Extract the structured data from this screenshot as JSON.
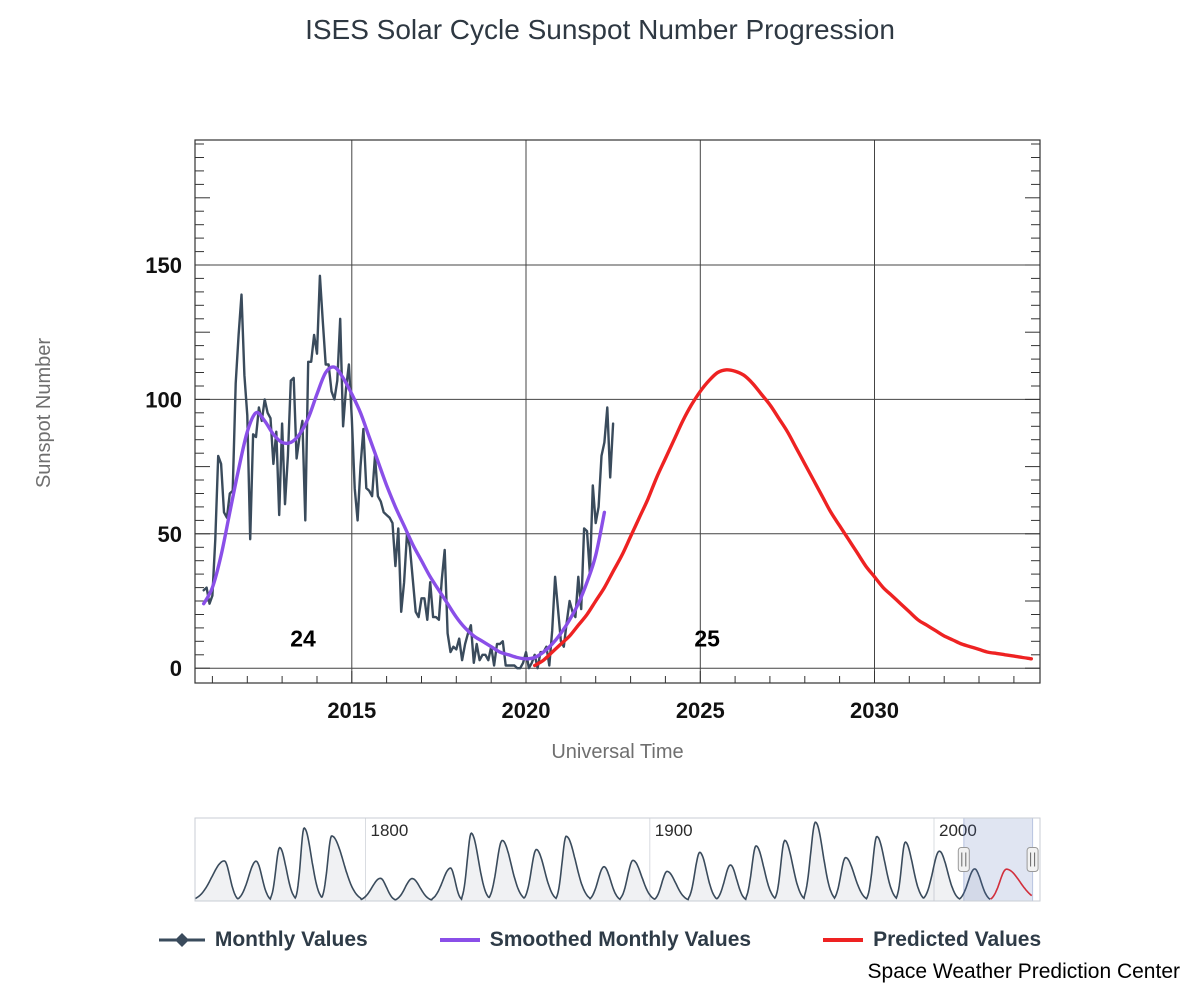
{
  "title": "ISES Solar Cycle Sunspot Number Progression",
  "credit": "Space Weather Prediction Center",
  "chart_data": {
    "type": "line",
    "title": "ISES Solar Cycle Sunspot Number Progression",
    "xlabel": "Universal Time",
    "ylabel": "Sunspot Number",
    "xlim": [
      2010.5,
      2034.75
    ],
    "ylim": [
      -5.5,
      196.5
    ],
    "x_ticks": [
      2015,
      2020,
      2025,
      2030
    ],
    "y_ticks": [
      0,
      50,
      100,
      150
    ],
    "grid": true,
    "legend_position": "bottom",
    "annotations": [
      {
        "text": "24",
        "x": 2013.6,
        "y": 8
      },
      {
        "text": "25",
        "x": 2025.2,
        "y": 8
      }
    ],
    "series": [
      {
        "id": "monthly-values",
        "name": "Monthly Values",
        "color": "#3a4b5c",
        "width": 2.4,
        "smooth": false,
        "marker": "diamond",
        "start": 2010.75,
        "step": 0.083333,
        "values": [
          29,
          30,
          24,
          27,
          48,
          79,
          76,
          58,
          56,
          65,
          66,
          106,
          124,
          139,
          109,
          94,
          48,
          87,
          86,
          97,
          92,
          100,
          95,
          93,
          76,
          88,
          57,
          91,
          61,
          79,
          107,
          108,
          78,
          86,
          92,
          55,
          114,
          114,
          124,
          117,
          146,
          129,
          113,
          113,
          103,
          100,
          107,
          130,
          90,
          104,
          113,
          93,
          67,
          55,
          75,
          89,
          67,
          66,
          64,
          79,
          64,
          62,
          58,
          57,
          56,
          54,
          38,
          52,
          21,
          32,
          50,
          45,
          33,
          21,
          19,
          26,
          26,
          18,
          32,
          19,
          19,
          18,
          33,
          44,
          13,
          6,
          8,
          7,
          11,
          3,
          9,
          13,
          16,
          2,
          9,
          3,
          5,
          5,
          3,
          8,
          1,
          9,
          9,
          10,
          1,
          1,
          1,
          1,
          0,
          0,
          2,
          6,
          0,
          2,
          5,
          0,
          6,
          6,
          8,
          1,
          14,
          34,
          22,
          10,
          8,
          17,
          25,
          21,
          19,
          34,
          22,
          52,
          51,
          35,
          68,
          54,
          60,
          79,
          84,
          97,
          71,
          91
        ]
      },
      {
        "id": "smoothed-monthly-values",
        "name": "Smoothed Monthly Values",
        "color": "#8a4fe8",
        "width": 3.4,
        "smooth": true,
        "start": 2010.75,
        "step": 0.25,
        "values": [
          24,
          30,
          42,
          58,
          74,
          88,
          95,
          92,
          87,
          84,
          84,
          87,
          93,
          102,
          110,
          112,
          108,
          102,
          95,
          86,
          77,
          68,
          60,
          53,
          46,
          40,
          34,
          29,
          24,
          19,
          15,
          12,
          10,
          8,
          6,
          5,
          4,
          3.5,
          4,
          6,
          9,
          13,
          18,
          24,
          32,
          42,
          58
        ]
      },
      {
        "id": "predicted-values",
        "name": "Predicted Values",
        "color": "#ee2222",
        "width": 3.4,
        "smooth": true,
        "start": 2020.25,
        "step": 0.25,
        "values": [
          1,
          3,
          6,
          9,
          12,
          16,
          20,
          25,
          30,
          36,
          42,
          49,
          56,
          63,
          71,
          78,
          85,
          92,
          98,
          103,
          107,
          110,
          111,
          110.5,
          109,
          106,
          102,
          98,
          93,
          88,
          82,
          76,
          70,
          64,
          58,
          53,
          48,
          43,
          38,
          34,
          30,
          27,
          24,
          21,
          18,
          16,
          14,
          12,
          10.5,
          9,
          8,
          7,
          6,
          5.5,
          5,
          4.5,
          4,
          3.5
        ]
      }
    ]
  },
  "navigator": {
    "x_ticks": [
      1800,
      1900,
      2000
    ],
    "xlim": [
      1740,
      2037.3
    ],
    "ymax": 300,
    "series_end": 2034.5,
    "selection": [
      2010.5,
      2034.7
    ],
    "line_color": "#3a4b5c",
    "predicted_color": "#ee2222",
    "selection_fill": "rgba(82,113,182,0.18)",
    "cycles": [
      [
        1740,
        1750.3,
        145
      ],
      [
        1755.2,
        1761.5,
        144
      ],
      [
        1766.6,
        1769.8,
        193
      ],
      [
        1775.5,
        1778.4,
        264
      ],
      [
        1784.7,
        1788.1,
        235
      ],
      [
        1798.3,
        1805.2,
        82
      ],
      [
        1810.6,
        1816.4,
        81
      ],
      [
        1823.3,
        1829.9,
        119
      ],
      [
        1833.9,
        1837.2,
        245
      ],
      [
        1843.5,
        1848.1,
        219
      ],
      [
        1855.9,
        1860.1,
        186
      ],
      [
        1867.2,
        1870.6,
        234
      ],
      [
        1878.9,
        1883.9,
        124
      ],
      [
        1889.6,
        1894.1,
        147
      ],
      [
        1901.7,
        1906.1,
        107
      ],
      [
        1913.6,
        1917.6,
        176
      ],
      [
        1923.6,
        1928.4,
        130
      ],
      [
        1933.8,
        1937.4,
        199
      ],
      [
        1944.2,
        1947.5,
        219
      ],
      [
        1954.3,
        1958.3,
        285
      ],
      [
        1964.9,
        1968.9,
        157
      ],
      [
        1976.5,
        1979.9,
        233
      ],
      [
        1986.8,
        1989.9,
        213
      ],
      [
        1996.4,
        2001.9,
        180
      ],
      [
        2008.9,
        2014.3,
        116
      ],
      [
        2019.9,
        2025.5,
        115
      ]
    ]
  }
}
